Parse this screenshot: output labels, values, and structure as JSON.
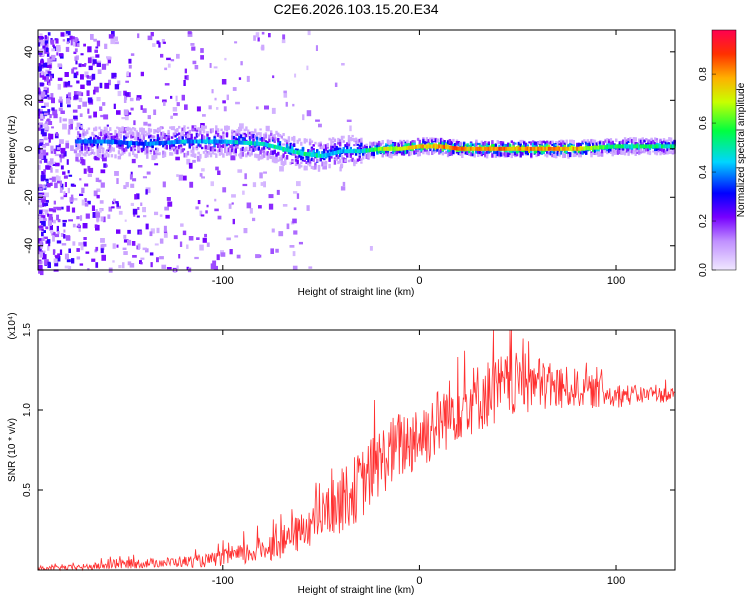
{
  "title": "C2E6.2026.103.15.20.E34",
  "chart_data": [
    {
      "type": "heatmap",
      "xlabel": "Height of straight line (km)",
      "ylabel": "Frequency (Hz)",
      "xlim": [
        -194,
        130
      ],
      "ylim": [
        -50,
        49
      ],
      "xticks": [
        -100,
        0,
        100
      ],
      "yticks": [
        -40,
        -20,
        0,
        20,
        40
      ],
      "colorbar": {
        "label": "Normalized spectral amplitude",
        "range": [
          0.0,
          0.98
        ],
        "ticks": [
          0.0,
          0.2,
          0.4,
          0.6,
          0.8
        ],
        "colors": [
          "#f0e8ff",
          "#7700ff",
          "#0000ff",
          "#00e5ff",
          "#00ff40",
          "#c8ff00",
          "#ffb000",
          "#ff3000",
          "#ff0050"
        ]
      },
      "trace": {
        "description_points_x": [
          -160,
          -140,
          -120,
          -100,
          -80,
          -60,
          -50,
          -40,
          -30,
          -20,
          -10,
          0,
          10,
          20,
          40,
          60,
          80,
          100,
          130
        ],
        "frequency_hz": [
          3,
          2,
          3,
          3,
          2,
          -2,
          -3,
          -1,
          -1,
          0,
          0,
          1,
          1,
          0,
          0,
          0,
          0,
          1,
          1
        ],
        "peak_amplitude": [
          0.45,
          0.45,
          0.5,
          0.5,
          0.55,
          0.6,
          0.55,
          0.5,
          0.55,
          0.75,
          0.8,
          0.85,
          0.9,
          0.9,
          0.9,
          0.9,
          0.85,
          0.6,
          0.6
        ]
      }
    },
    {
      "type": "line",
      "xlabel": "Height of straight line (km)",
      "ylabel": "SNR (10 * v/v)",
      "exponent_label": "(x10⁴)",
      "xlim": [
        -194,
        130
      ],
      "ylim": [
        0,
        1.5
      ],
      "xticks": [
        -100,
        0,
        100
      ],
      "yticks": [
        0.5,
        1.0,
        1.5
      ],
      "color": "#ff3030",
      "series": [
        {
          "name": "SNR",
          "x": [
            -194,
            -170,
            -150,
            -130,
            -110,
            -100,
            -90,
            -80,
            -70,
            -60,
            -50,
            -40,
            -30,
            -20,
            -10,
            0,
            10,
            20,
            30,
            40,
            50,
            60,
            70,
            80,
            90,
            100,
            110,
            120,
            130
          ],
          "y": [
            0.01,
            0.02,
            0.04,
            0.05,
            0.06,
            0.08,
            0.1,
            0.14,
            0.18,
            0.25,
            0.35,
            0.45,
            0.55,
            0.7,
            0.8,
            0.85,
            0.95,
            1.05,
            1.1,
            1.15,
            1.18,
            1.18,
            1.15,
            1.15,
            1.12,
            1.1,
            1.1,
            1.1,
            1.1
          ],
          "noise": [
            0.01,
            0.02,
            0.03,
            0.03,
            0.04,
            0.05,
            0.07,
            0.08,
            0.1,
            0.12,
            0.15,
            0.2,
            0.22,
            0.22,
            0.22,
            0.22,
            0.22,
            0.22,
            0.22,
            0.22,
            0.2,
            0.18,
            0.15,
            0.12,
            0.1,
            0.08,
            0.06,
            0.05,
            0.05
          ]
        }
      ]
    }
  ]
}
